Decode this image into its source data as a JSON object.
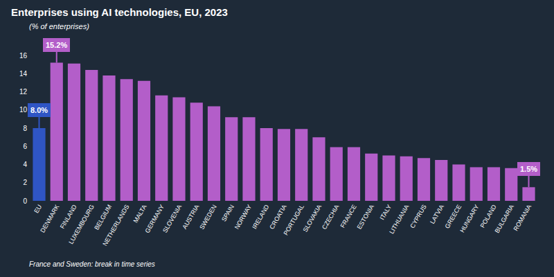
{
  "chart_data": {
    "type": "bar",
    "title": "Enterprises using AI technologies, EU, 2023",
    "subtitle": "(% of enterprises)",
    "footnote": "France and Sweden: break in time series",
    "categories": [
      "EU",
      "DENMARK",
      "FINLAND",
      "LUXEMBOURG",
      "BELGIUM",
      "NETHERLANDS",
      "MALTA",
      "GERMANY",
      "SLOVENIA",
      "AUSTRIA",
      "SWEDEN",
      "SPAIN",
      "NORWAY",
      "IRELAND",
      "CROATIA",
      "PORTUGAL",
      "SLOVAKIA",
      "CZECHIA",
      "FRANCE",
      "ESTONIA",
      "ITALY",
      "LITHUANIA",
      "CYPRUS",
      "LATVIA",
      "GREECE",
      "HUNGARY",
      "POLAND",
      "BULGARIA",
      "ROMANIA"
    ],
    "values": [
      8.0,
      15.2,
      15.1,
      14.4,
      13.8,
      13.4,
      13.2,
      11.6,
      11.4,
      10.8,
      10.4,
      9.2,
      9.2,
      8.0,
      7.9,
      7.9,
      7.0,
      5.9,
      5.9,
      5.2,
      5.0,
      4.9,
      4.7,
      4.5,
      4.0,
      3.7,
      3.7,
      3.6,
      1.5
    ],
    "value_labels": [
      "8.0%",
      "15.2%",
      null,
      null,
      null,
      null,
      null,
      null,
      null,
      null,
      null,
      null,
      null,
      null,
      null,
      null,
      null,
      null,
      null,
      null,
      null,
      null,
      null,
      null,
      null,
      null,
      null,
      null,
      "1.5%"
    ],
    "colors": [
      "#2f55c4",
      "#b35ec9",
      "#b35ec9",
      "#b35ec9",
      "#b35ec9",
      "#b35ec9",
      "#b35ec9",
      "#b35ec9",
      "#b35ec9",
      "#b35ec9",
      "#b35ec9",
      "#b35ec9",
      "#b35ec9",
      "#b35ec9",
      "#b35ec9",
      "#b35ec9",
      "#b35ec9",
      "#b35ec9",
      "#b35ec9",
      "#b35ec9",
      "#b35ec9",
      "#b35ec9",
      "#b35ec9",
      "#b35ec9",
      "#b35ec9",
      "#b35ec9",
      "#b35ec9",
      "#b35ec9",
      "#b35ec9"
    ],
    "ylim": [
      0,
      16
    ],
    "yticks": [
      0,
      2,
      4,
      6,
      8,
      10,
      12,
      14,
      16
    ],
    "grid": false,
    "data_labels": true
  }
}
